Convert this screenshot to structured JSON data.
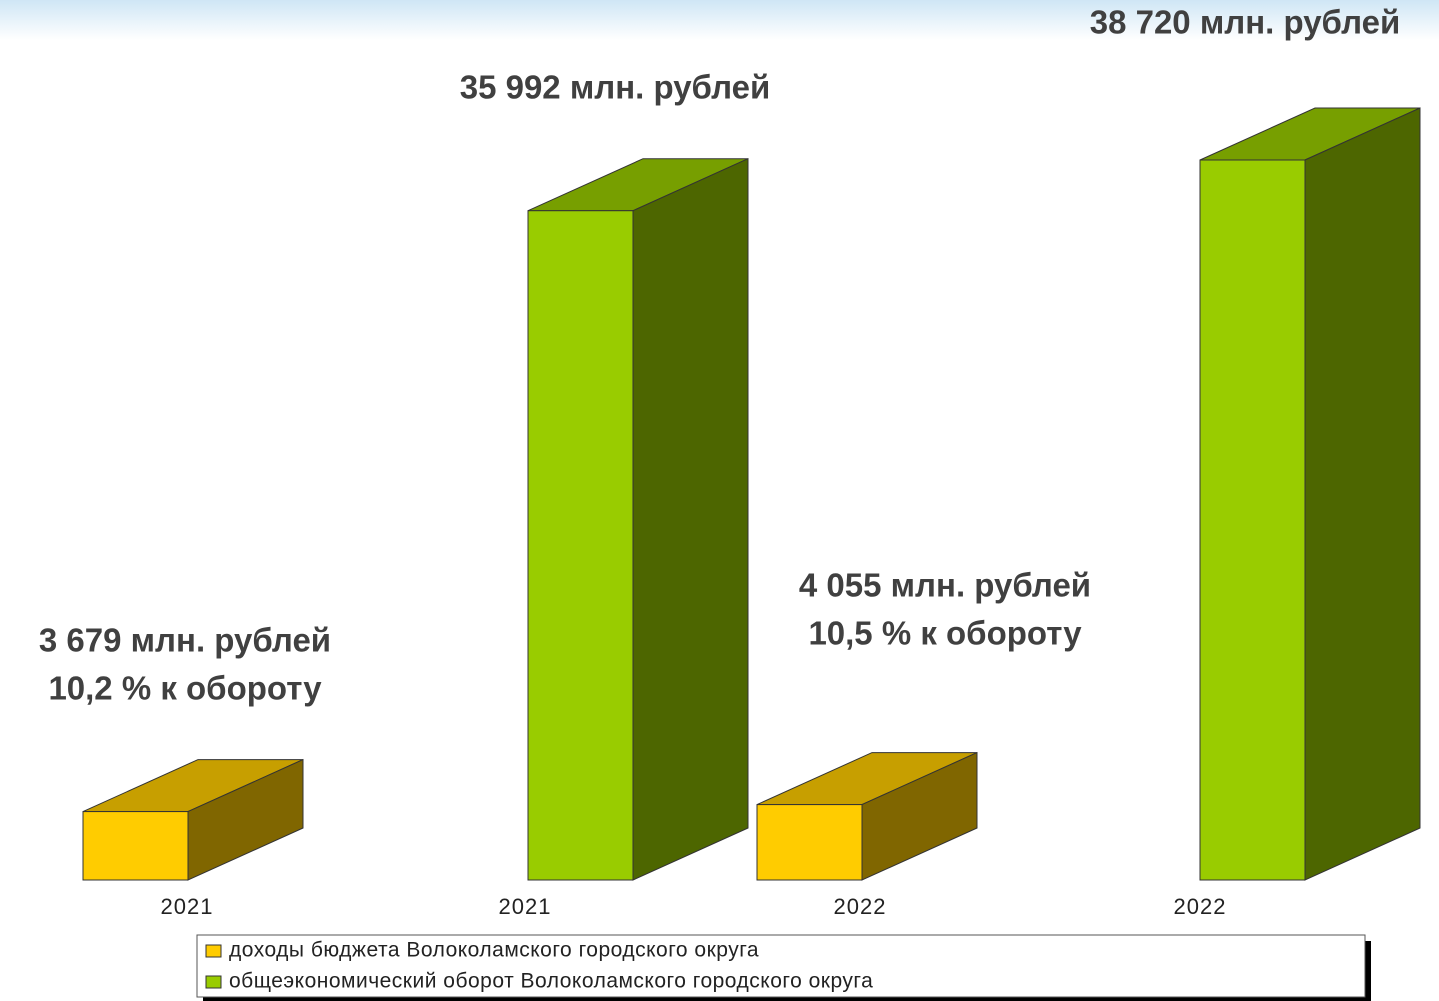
{
  "chart_data": {
    "type": "bar3d",
    "categories": [
      "2021",
      "2021",
      "2022",
      "2022"
    ],
    "series": [
      {
        "name": "доходы бюджета Волоколамского городского округа",
        "color": "#ffcc00",
        "values": [
          3679,
          null,
          4055,
          null
        ],
        "value_labels": [
          "3 679 млн. рублей",
          null,
          "4 055 млн. рублей",
          null
        ],
        "annotations": [
          "10,2 %  к обороту",
          null,
          "10,5 %  к обороту",
          null
        ]
      },
      {
        "name": "общеэкономический оборот Волоколамского городского округа",
        "color": "#99cc00",
        "values": [
          null,
          35992,
          null,
          38720
        ],
        "value_labels": [
          null,
          "35 992  млн. рублей",
          null,
          "38 720 млн. рублей"
        ]
      }
    ]
  }
}
